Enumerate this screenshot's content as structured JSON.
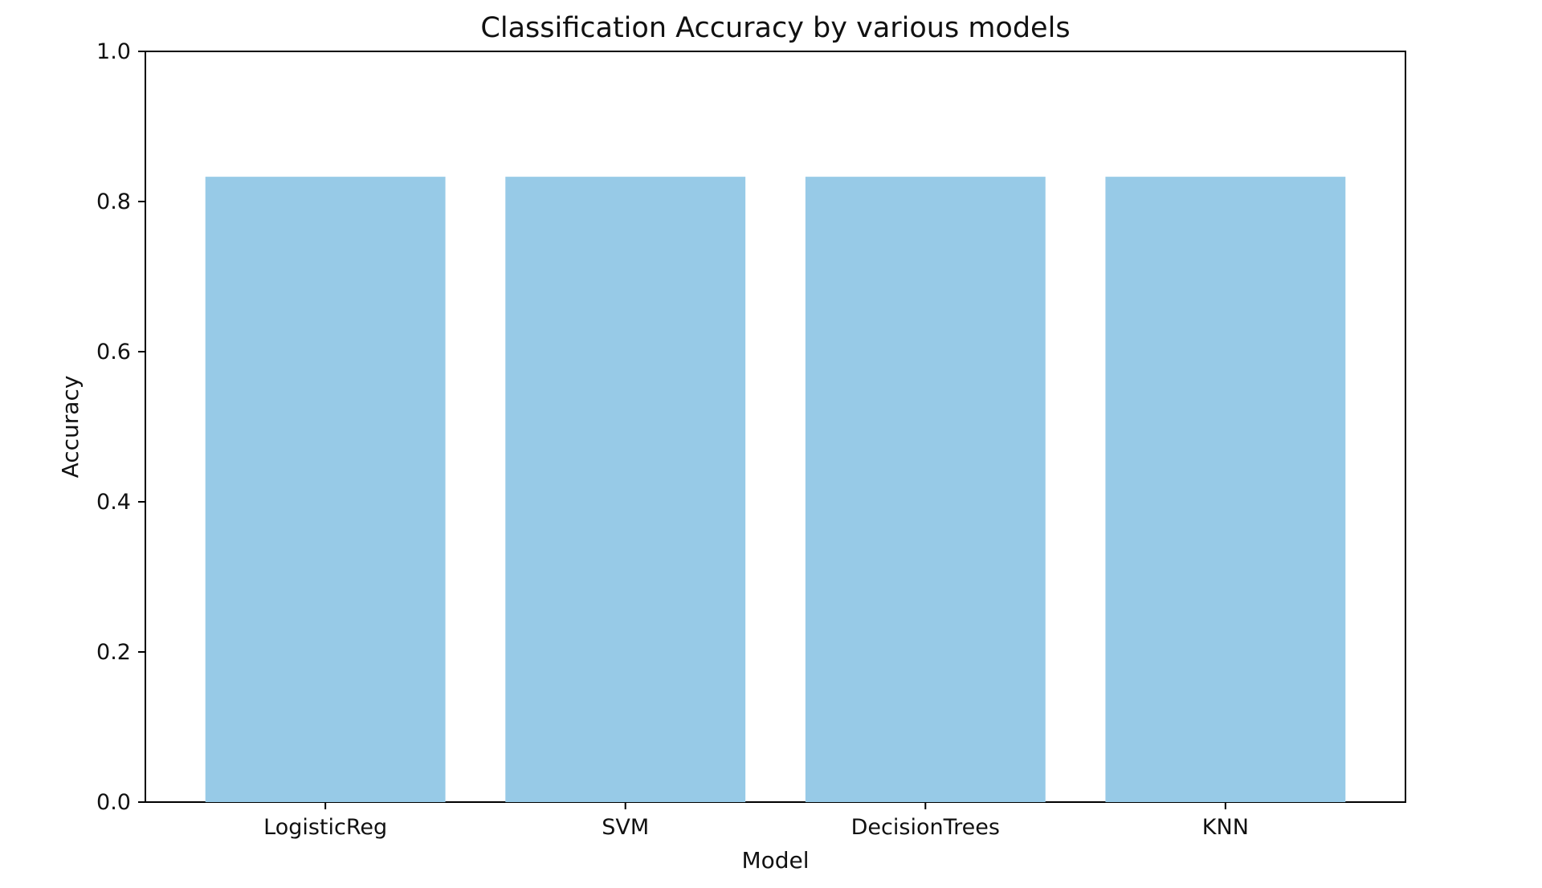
{
  "chart_data": {
    "type": "bar",
    "title": "Classification Accuracy by various models",
    "xlabel": "Model",
    "ylabel": "Accuracy",
    "categories": [
      "LogisticReg",
      "SVM",
      "DecisionTrees",
      "KNN"
    ],
    "values": [
      0.833,
      0.833,
      0.833,
      0.833
    ],
    "ylim": [
      0.0,
      1.0
    ],
    "yticks": [
      "0.0",
      "0.2",
      "0.4",
      "0.6",
      "0.8",
      "1.0"
    ],
    "grid": false,
    "legend": "none",
    "bar_color": "#97cae7"
  }
}
